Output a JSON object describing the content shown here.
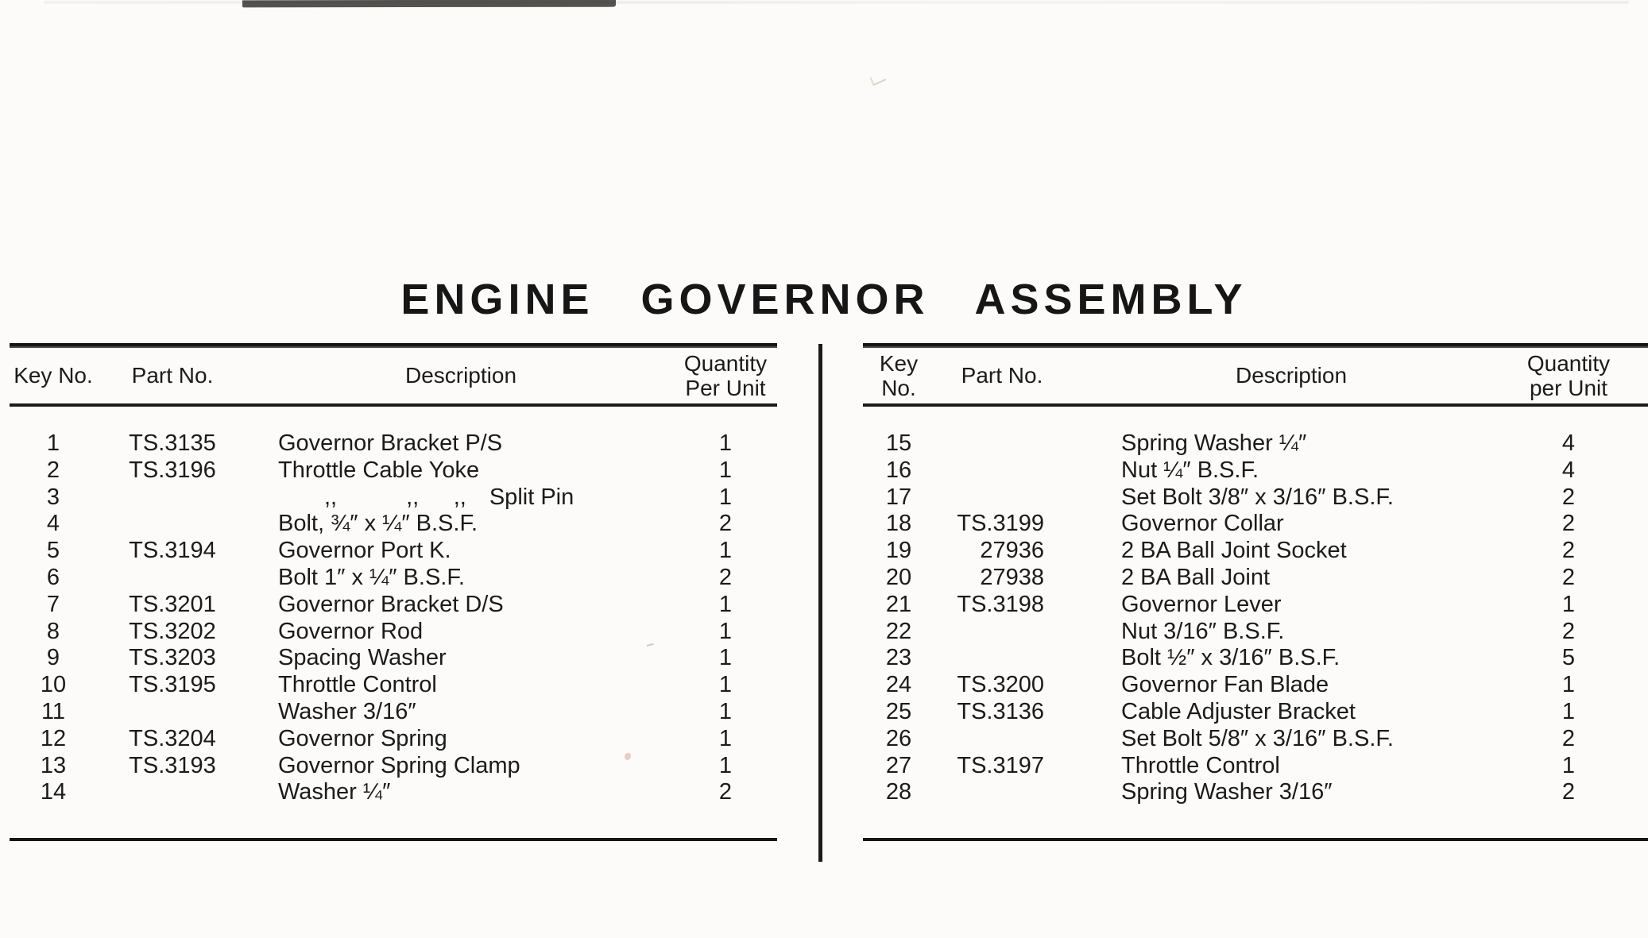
{
  "page": {
    "title": "ENGINE GOVERNOR ASSEMBLY"
  },
  "tables": [
    {
      "side": "left",
      "headers": {
        "key": "Key No.",
        "part": "Part No.",
        "description": "Description",
        "qty_line1": "Quantity",
        "qty_line2": "Per Unit"
      },
      "rows": [
        {
          "key": "1",
          "part": "TS.3135",
          "desc": "Governor Bracket P/S",
          "qty": "1"
        },
        {
          "key": "2",
          "part": "TS.3196",
          "desc": "Throttle Cable Yoke",
          "qty": "1"
        },
        {
          "key": "3",
          "part": "",
          "desc": "  ,,   ,,  ,, Split Pin",
          "qty": "1"
        },
        {
          "key": "4",
          "part": "",
          "desc": "Bolt, ¾″ x ¼″ B.S.F.",
          "qty": "2"
        },
        {
          "key": "5",
          "part": "TS.3194",
          "desc": "Governor Port K.",
          "qty": "1"
        },
        {
          "key": "6",
          "part": "",
          "desc": "Bolt 1″ x ¼″ B.S.F.",
          "qty": "2"
        },
        {
          "key": "7",
          "part": "TS.3201",
          "desc": "Governor Bracket D/S",
          "qty": "1"
        },
        {
          "key": "8",
          "part": "TS.3202",
          "desc": "Governor Rod",
          "qty": "1"
        },
        {
          "key": "9",
          "part": "TS.3203",
          "desc": "Spacing Washer",
          "qty": "1"
        },
        {
          "key": "10",
          "part": "TS.3195",
          "desc": "Throttle Control",
          "qty": "1"
        },
        {
          "key": "11",
          "part": "",
          "desc": "Washer 3/16″",
          "qty": "1"
        },
        {
          "key": "12",
          "part": "TS.3204",
          "desc": "Governor Spring",
          "qty": "1"
        },
        {
          "key": "13",
          "part": "TS.3193",
          "desc": "Governor Spring Clamp",
          "qty": "1"
        },
        {
          "key": "14",
          "part": "",
          "desc": "Washer ¼″",
          "qty": "2"
        }
      ]
    },
    {
      "side": "right",
      "headers": {
        "key": "Key No.",
        "part": "Part No.",
        "description": "Description",
        "qty_line1": "Quantity",
        "qty_line2": "per Unit"
      },
      "rows": [
        {
          "key": "15",
          "part": "",
          "desc": "Spring Washer ¼″",
          "qty": "4"
        },
        {
          "key": "16",
          "part": "",
          "desc": "Nut ¼″ B.S.F.",
          "qty": "4"
        },
        {
          "key": "17",
          "part": "",
          "desc": "Set Bolt 3/8″ x 3/16″ B.S.F.",
          "qty": "2"
        },
        {
          "key": "18",
          "part": "TS.3199",
          "desc": "Governor Collar",
          "qty": "2"
        },
        {
          "key": "19",
          "part": "27936",
          "desc": "2 BA Ball Joint Socket",
          "qty": "2"
        },
        {
          "key": "20",
          "part": "27938",
          "desc": "2 BA Ball Joint",
          "qty": "2"
        },
        {
          "key": "21",
          "part": "TS.3198",
          "desc": "Governor Lever",
          "qty": "1"
        },
        {
          "key": "22",
          "part": "",
          "desc": "Nut 3/16″ B.S.F.",
          "qty": "2"
        },
        {
          "key": "23",
          "part": "",
          "desc": "Bolt ½″ x 3/16″ B.S.F.",
          "qty": "5"
        },
        {
          "key": "24",
          "part": "TS.3200",
          "desc": "Governor Fan Blade",
          "qty": "1"
        },
        {
          "key": "25",
          "part": "TS.3136",
          "desc": "Cable Adjuster Bracket",
          "qty": "1"
        },
        {
          "key": "26",
          "part": "",
          "desc": "Set Bolt 5/8″ x 3/16″ B.S.F.",
          "qty": "2"
        },
        {
          "key": "27",
          "part": "TS.3197",
          "desc": "Throttle Control",
          "qty": "1"
        },
        {
          "key": "28",
          "part": "",
          "desc": "Spring Washer 3/16″",
          "qty": "2"
        }
      ]
    }
  ]
}
